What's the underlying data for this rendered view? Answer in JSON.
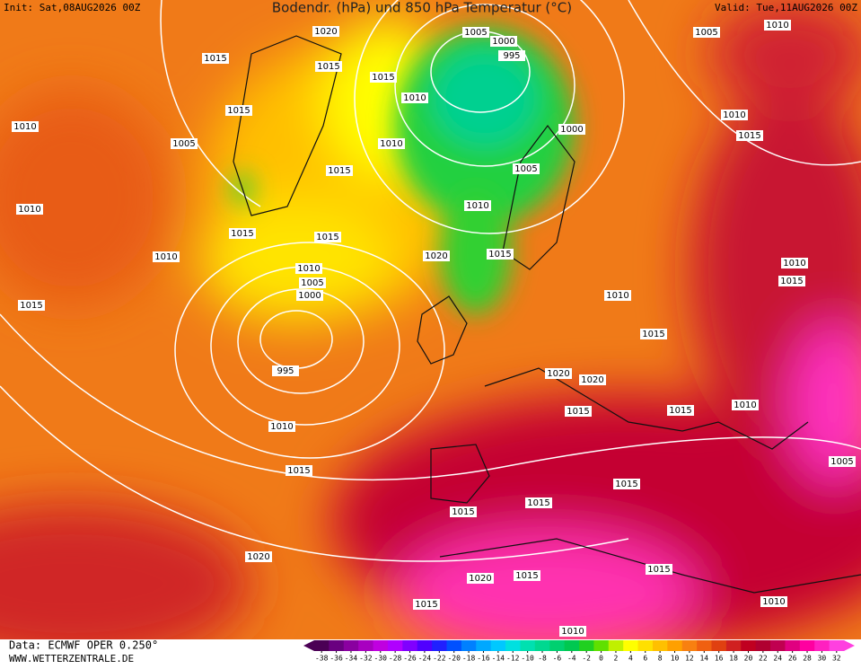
{
  "header": {
    "init": "Init: Sat,08AUG2026 00Z",
    "title": "Bodendr. (hPa) und 850 hPa Temperatur (°C)",
    "valid": "Valid: Tue,11AUG2026 00Z"
  },
  "footer": {
    "data": "Data: ECMWF OPER 0.250°",
    "site": "WWW.WETTERZENTRALE.DE"
  },
  "isobar_labels": [
    1020,
    1005,
    1000,
    995,
    1015,
    1015,
    1015,
    1010,
    1015,
    1010,
    1005,
    1010,
    1015,
    1005,
    1000,
    1010,
    1015,
    1005,
    1010,
    1010,
    1015,
    1015,
    1010,
    1010,
    1020,
    1015,
    1010,
    1005,
    1000,
    1010,
    1010,
    1015,
    1015,
    1015,
    995,
    1020,
    1020,
    1015,
    1015,
    1010,
    1010,
    1015,
    1015,
    1005,
    1015,
    1015,
    1015,
    1020,
    1020,
    1015,
    1015,
    1010,
    1010
  ],
  "colorbar": {
    "ticks": [
      -38,
      -36,
      -34,
      -32,
      -30,
      -28,
      -26,
      -24,
      -22,
      -20,
      -18,
      -16,
      -14,
      -12,
      -10,
      -8,
      -6,
      -4,
      -2,
      0,
      2,
      4,
      6,
      8,
      10,
      12,
      14,
      16,
      18,
      20,
      22,
      24,
      26,
      28,
      30,
      32
    ],
    "colors": [
      "#4b0055",
      "#6a0080",
      "#8a00a0",
      "#a800c0",
      "#c000e0",
      "#b000ff",
      "#8000ff",
      "#5000ff",
      "#2020ff",
      "#0050ff",
      "#0080ff",
      "#00a8ff",
      "#00c8ff",
      "#00e0e0",
      "#00e0b0",
      "#00d890",
      "#00d070",
      "#00c850",
      "#20d020",
      "#60e000",
      "#c0f000",
      "#ffff00",
      "#ffe000",
      "#ffc000",
      "#ffa000",
      "#f88010",
      "#f06010",
      "#e04010",
      "#d02020",
      "#c00020",
      "#b00030",
      "#c00050",
      "#e00080",
      "#ff00a0",
      "#ff20c0",
      "#ff40e0"
    ]
  }
}
